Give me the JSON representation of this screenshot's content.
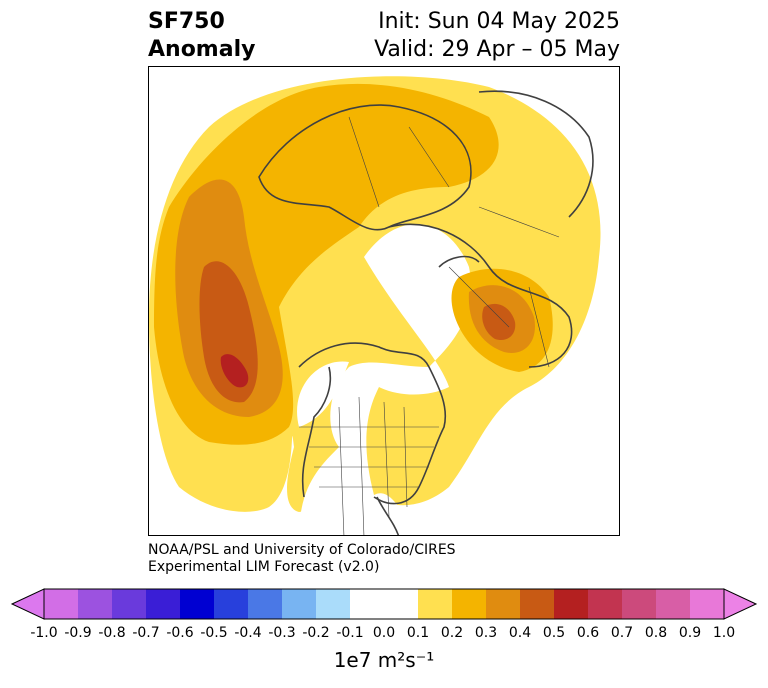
{
  "header": {
    "variable": "SF750",
    "field": "Anomaly",
    "init": "Init: Sun 04 May 2025",
    "valid": "Valid: 29 Apr – 05 May"
  },
  "credit": {
    "line1": "NOAA/PSL and University of Colorado/CIRES",
    "line2": "Experimental LIM Forecast (v2.0)"
  },
  "colorbar": {
    "unit": "1e7 m²s⁻¹",
    "ticks": [
      "-1.0",
      "-0.9",
      "-0.8",
      "-0.7",
      "-0.6",
      "-0.5",
      "-0.4",
      "-0.3",
      "-0.2",
      "-0.1",
      "0.0",
      "0.1",
      "0.2",
      "0.3",
      "0.4",
      "0.5",
      "0.6",
      "0.7",
      "0.8",
      "0.9",
      "1.0"
    ],
    "colors": [
      "#d26ee6",
      "#9c52e0",
      "#6a3adc",
      "#3a1ed6",
      "#0000d2",
      "#2840dc",
      "#4a78e6",
      "#78b4f2",
      "#aadcfa",
      "#ffffff",
      "#ffffff",
      "#ffe050",
      "#f4b400",
      "#e08c10",
      "#c85a14",
      "#b42020",
      "#c23450",
      "#cc4a7c",
      "#d85ea6",
      "#e878d8"
    ],
    "under_color": "#dc78ee",
    "over_color": "#ec82e6"
  },
  "map": {
    "projection": "north-polar-stereographic",
    "coastline_color": "#404040",
    "fill_levels": [
      "#ffe050",
      "#f4b400",
      "#e08c10",
      "#c85a14",
      "#b42020"
    ]
  }
}
